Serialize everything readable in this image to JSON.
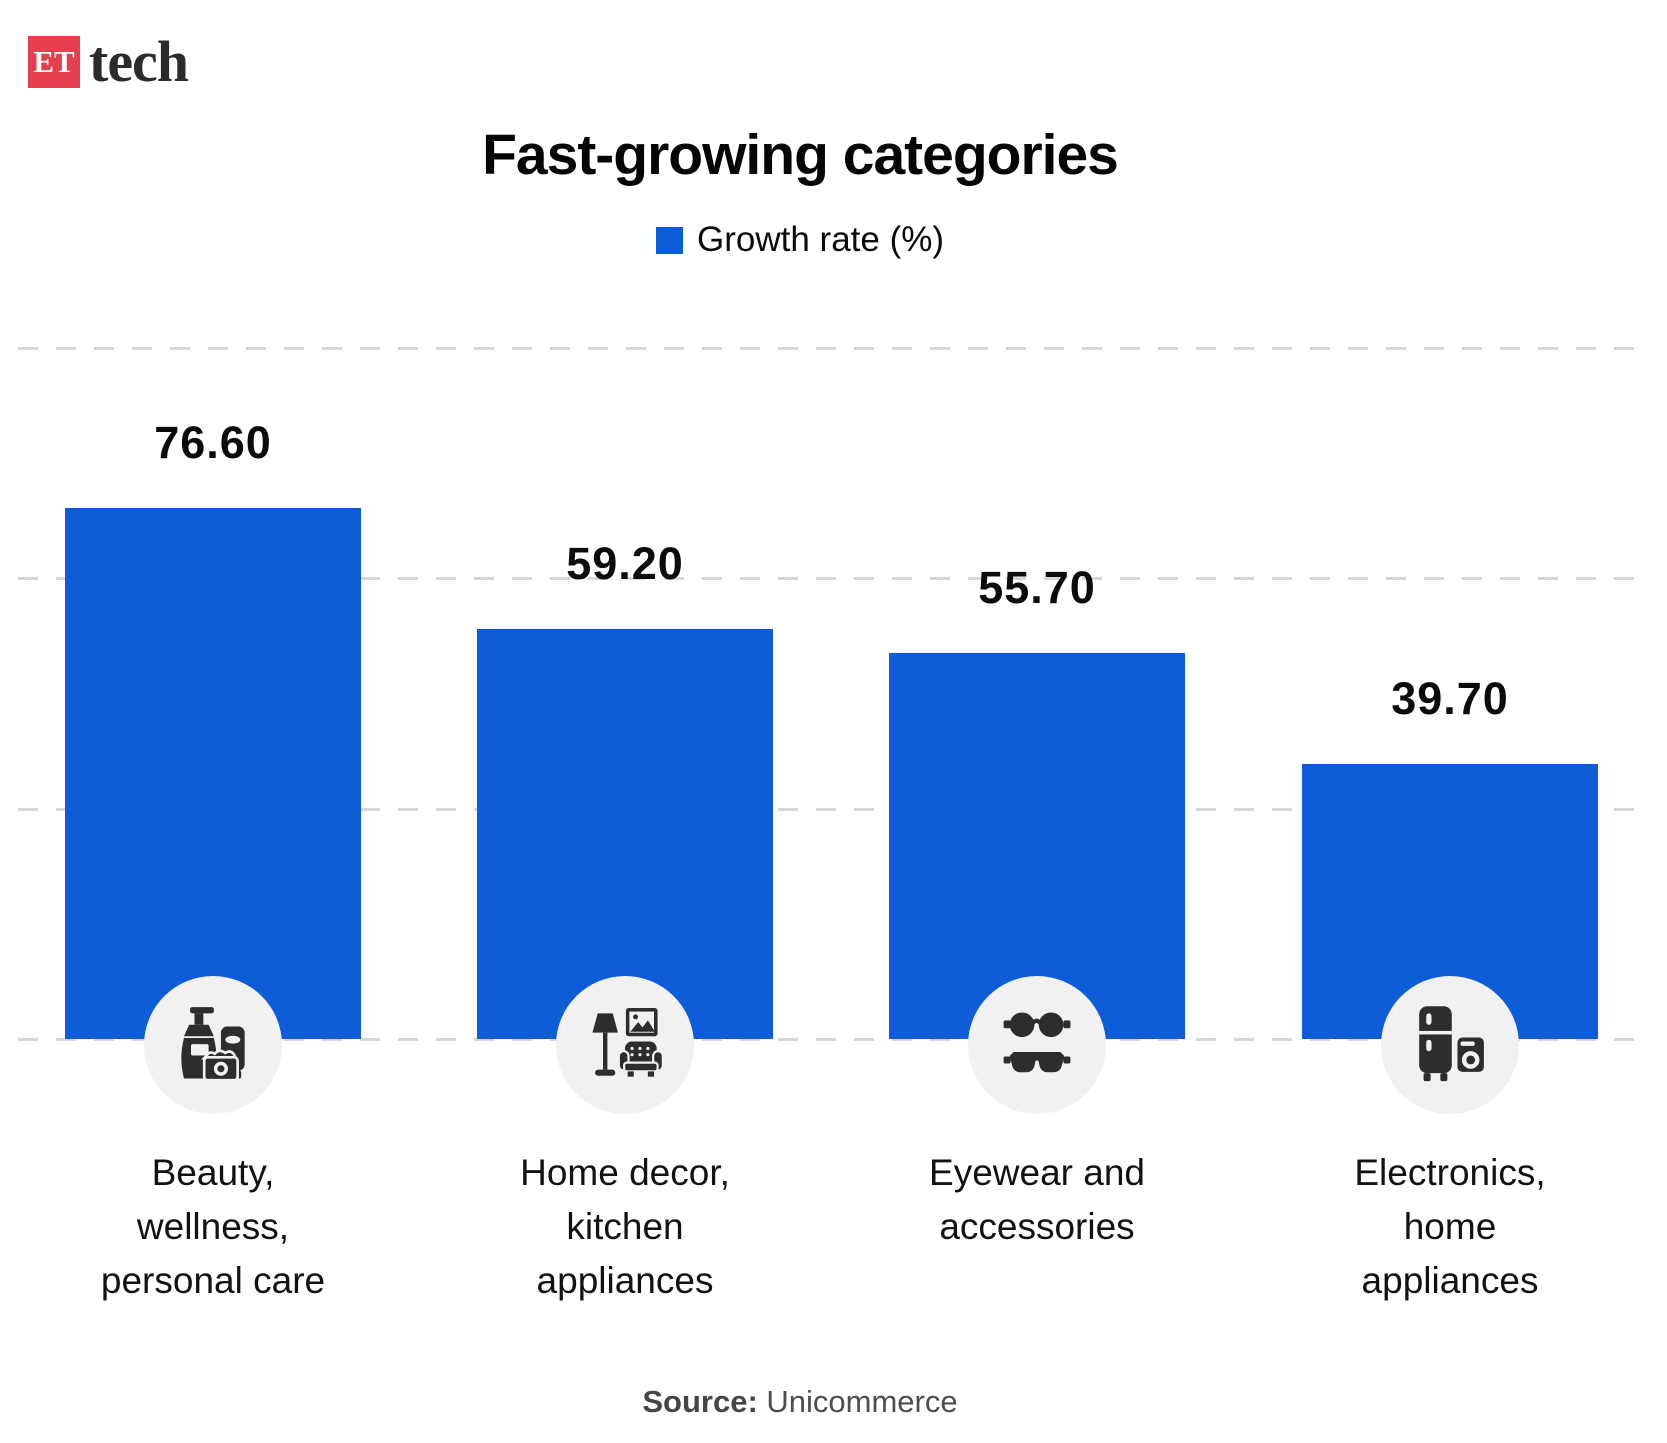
{
  "logo": {
    "box_text": "ET",
    "brand_text": "tech"
  },
  "title": "Fast-growing categories",
  "legend": {
    "label": "Growth rate (%)"
  },
  "source": {
    "prefix": "Source:",
    "name": "Unicommerce"
  },
  "colors": {
    "bar": "#0c5dd7",
    "logo_red": "#e63e4d",
    "icon_dark": "#2d2d2d",
    "badge_bg": "#f1f1f2",
    "gridline": "#d7d7d7"
  },
  "chart_data": {
    "type": "bar",
    "title": "Fast-growing categories",
    "series_label": "Growth rate (%)",
    "categories": [
      "Beauty, wellness, personal care",
      "Home decor, kitchen appliances",
      "Eyewear and accessories",
      "Electronics, home appliances"
    ],
    "values": [
      76.6,
      59.2,
      55.7,
      39.7
    ],
    "value_labels": [
      "76.60",
      "59.20",
      "55.70",
      "39.70"
    ],
    "ylabel": "Growth rate (%)",
    "xlabel": "",
    "ylim": [
      0,
      90
    ],
    "grid": "horizontal-dashed",
    "legend_position": "top-center",
    "bar_color": "#0c5dd7",
    "source": "Source: Unicommerce"
  },
  "bars": [
    {
      "value_label": "76.60",
      "value": 76.6,
      "lines": [
        "Beauty,",
        "wellness,",
        "personal care"
      ],
      "icon": "cosmetics-icon"
    },
    {
      "value_label": "59.20",
      "value": 59.2,
      "lines": [
        "Home decor,",
        "kitchen",
        "appliances"
      ],
      "icon": "home-decor-icon"
    },
    {
      "value_label": "55.70",
      "value": 55.7,
      "lines": [
        "Eyewear and",
        "accessories"
      ],
      "icon": "sunglasses-icon"
    },
    {
      "value_label": "39.70",
      "value": 39.7,
      "lines": [
        "Electronics,",
        "home",
        "appliances"
      ],
      "icon": "appliances-icon"
    }
  ]
}
